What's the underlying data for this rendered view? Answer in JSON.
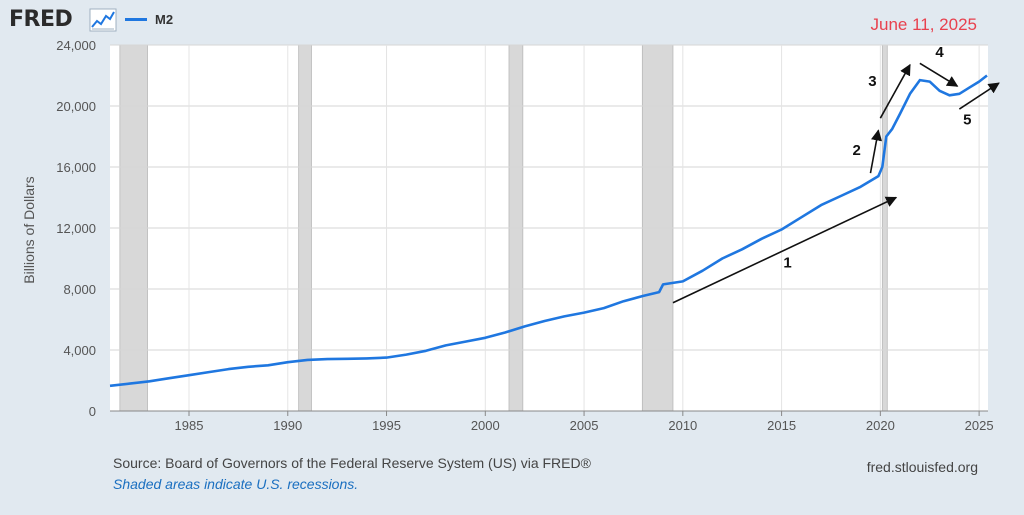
{
  "header": {
    "logo": "FRED",
    "date": "June 11, 2025"
  },
  "footer": {
    "source": "Source: Board of Governors of the Federal Reserve System (US) via FRED®",
    "note": "Shaded areas indicate U.S. recessions.",
    "url": "fred.stlouisfed.org"
  },
  "colors": {
    "series": "#1f77e0",
    "recession": "#d8d8d8",
    "date": "#e8414e",
    "background": "#e1e9f0"
  },
  "chart_data": {
    "type": "line",
    "title": "",
    "xlabel": "",
    "ylabel": "Billions of Dollars",
    "xlim": [
      1981,
      2025.45
    ],
    "ylim": [
      0,
      24000
    ],
    "xticks": [
      1985,
      1990,
      1995,
      2000,
      2005,
      2010,
      2015,
      2020,
      2025
    ],
    "yticks": [
      0,
      4000,
      8000,
      12000,
      16000,
      20000,
      24000
    ],
    "ytick_labels": [
      "0",
      "4,000",
      "8,000",
      "12,000",
      "16,000",
      "20,000",
      "24,000"
    ],
    "grid": true,
    "legend": "top-left",
    "recessions": [
      [
        1981.5,
        1982.9
      ],
      [
        1990.55,
        1991.2
      ],
      [
        2001.2,
        2001.9
      ],
      [
        2007.95,
        2009.5
      ],
      [
        2020.1,
        2020.35
      ]
    ],
    "series": [
      {
        "name": "M2",
        "x": [
          1981.0,
          1982.0,
          1983.0,
          1984.0,
          1985.0,
          1986.0,
          1987.0,
          1988.0,
          1989.0,
          1990.0,
          1991.0,
          1992.0,
          1993.0,
          1994.0,
          1995.0,
          1996.0,
          1997.0,
          1998.0,
          1999.0,
          2000.0,
          2001.0,
          2002.0,
          2003.0,
          2004.0,
          2005.0,
          2006.0,
          2007.0,
          2008.0,
          2008.8,
          2009.0,
          2010.0,
          2011.0,
          2012.0,
          2013.0,
          2014.0,
          2015.0,
          2016.0,
          2017.0,
          2018.0,
          2019.0,
          2019.9,
          2020.1,
          2020.3,
          2020.6,
          2021.0,
          2021.5,
          2022.0,
          2022.5,
          2023.0,
          2023.5,
          2024.0,
          2024.5,
          2025.0,
          2025.4
        ],
        "y": [
          1650,
          1800,
          1950,
          2150,
          2350,
          2550,
          2750,
          2900,
          3000,
          3200,
          3350,
          3400,
          3420,
          3450,
          3500,
          3700,
          3950,
          4300,
          4550,
          4800,
          5150,
          5550,
          5900,
          6200,
          6450,
          6750,
          7200,
          7550,
          7800,
          8300,
          8500,
          9200,
          10000,
          10600,
          11300,
          11900,
          12700,
          13500,
          14100,
          14700,
          15400,
          16000,
          18000,
          18500,
          19500,
          20800,
          21700,
          21600,
          21000,
          20700,
          20800,
          21200,
          21600,
          22000
        ]
      }
    ],
    "annotations": [
      {
        "label": "1",
        "x1": 2009.5,
        "y1": 7100,
        "x2": 2020.8,
        "y2": 14000,
        "tx": 2015.3,
        "ty": 9400
      },
      {
        "label": "2",
        "x1": 2019.5,
        "y1": 15600,
        "x2": 2019.9,
        "y2": 18400,
        "tx": 2018.8,
        "ty": 16800
      },
      {
        "label": "3",
        "x1": 2020.0,
        "y1": 19200,
        "x2": 2021.5,
        "y2": 22700,
        "tx": 2019.6,
        "ty": 21300
      },
      {
        "label": "4",
        "x1": 2022.0,
        "y1": 22800,
        "x2": 2023.9,
        "y2": 21300,
        "tx": 2023.0,
        "ty": 23200
      },
      {
        "label": "5",
        "x1": 2024.0,
        "y1": 19800,
        "x2": 2026.0,
        "y2": 21500,
        "tx": 2024.4,
        "ty": 18800
      }
    ]
  }
}
